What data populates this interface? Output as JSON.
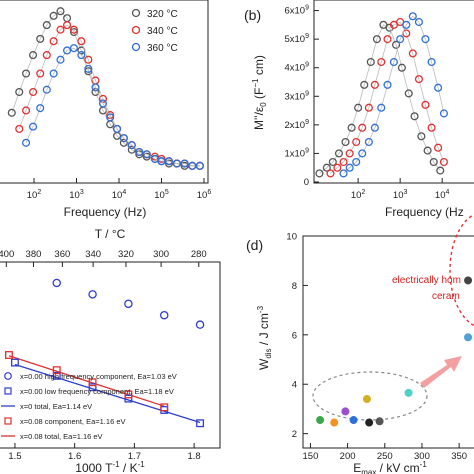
{
  "chart_data": [
    {
      "id": "a",
      "type": "scatter",
      "xlabel": "Frequency (Hz)",
      "xscale": "log",
      "xticks": [
        "10^2",
        "10^3",
        "10^4",
        "10^5",
        "10^6"
      ],
      "legend_position": "top-right",
      "series": [
        {
          "name": "320 °C",
          "color": "#555555",
          "x": [
            30,
            45,
            65,
            95,
            140,
            200,
            290,
            420,
            600,
            870,
            1300,
            1900,
            2800,
            4200,
            6200,
            9000,
            13000,
            20000,
            30000,
            45000,
            70000,
            100000,
            150000,
            230000,
            350000,
            530000,
            800000
          ],
          "y": [
            0.55,
            0.64,
            0.72,
            0.8,
            0.87,
            0.93,
            0.97,
            0.99,
            0.96,
            0.9,
            0.82,
            0.73,
            0.64,
            0.56,
            0.5,
            0.45,
            0.42,
            0.39,
            0.37,
            0.36,
            0.35,
            0.34,
            0.33,
            0.33,
            0.32,
            0.32,
            0.32
          ]
        },
        {
          "name": "340 °C",
          "color": "#e03030",
          "x": [
            45,
            65,
            95,
            140,
            200,
            290,
            420,
            600,
            870,
            1300,
            1900,
            2800,
            4200,
            6200,
            9000,
            13000,
            20000,
            30000,
            45000,
            70000,
            100000,
            150000,
            230000,
            350000,
            530000,
            800000
          ],
          "y": [
            0.48,
            0.56,
            0.64,
            0.72,
            0.8,
            0.86,
            0.91,
            0.93,
            0.91,
            0.86,
            0.78,
            0.69,
            0.61,
            0.54,
            0.48,
            0.44,
            0.41,
            0.38,
            0.37,
            0.36,
            0.35,
            0.34,
            0.33,
            0.33,
            0.32,
            0.32
          ]
        },
        {
          "name": "360 °C",
          "color": "#2f6fd6",
          "x": [
            65,
            95,
            140,
            200,
            290,
            420,
            600,
            870,
            1300,
            1900,
            2800,
            4200,
            6200,
            9000,
            13000,
            20000,
            30000,
            45000,
            70000,
            100000,
            150000,
            230000,
            350000,
            530000,
            800000
          ],
          "y": [
            0.42,
            0.49,
            0.57,
            0.65,
            0.72,
            0.78,
            0.82,
            0.83,
            0.8,
            0.74,
            0.66,
            0.59,
            0.53,
            0.48,
            0.44,
            0.41,
            0.38,
            0.37,
            0.35,
            0.34,
            0.34,
            0.33,
            0.33,
            0.32,
            0.32
          ]
        }
      ]
    },
    {
      "id": "b",
      "type": "scatter",
      "panel_label": "(b)",
      "xlabel": "Frequency (Hz",
      "ylabel": "M''/ε0 (F⁻¹ cm)",
      "xscale": "log",
      "xticks": [
        "10^2",
        "10^3",
        "10^4"
      ],
      "yticks": [
        "0",
        "1x10^9",
        "2x10^9",
        "3x10^9",
        "4x10^9",
        "5x10^9",
        "6x10^9"
      ],
      "ylim": [
        0,
        6.3
      ],
      "series": [
        {
          "name": "320 °C",
          "color": "#555555",
          "x": [
            12,
            18,
            25,
            35,
            50,
            70,
            100,
            140,
            200,
            280,
            400,
            560,
            800,
            1100,
            1600,
            2200,
            3200,
            4500,
            6300,
            9000
          ],
          "y": [
            0.3,
            0.5,
            0.7,
            1.0,
            1.4,
            1.9,
            2.6,
            3.4,
            4.2,
            5.0,
            5.5,
            5.4,
            4.8,
            4.0,
            3.1,
            2.3,
            1.6,
            1.1,
            0.7,
            0.4
          ]
        },
        {
          "name": "340 °C",
          "color": "#e03030",
          "x": [
            22,
            32,
            45,
            63,
            90,
            125,
            180,
            250,
            355,
            500,
            710,
            1000,
            1400,
            2000,
            2800,
            4000,
            5600,
            8000,
            11000
          ],
          "y": [
            0.3,
            0.5,
            0.7,
            1.0,
            1.4,
            1.9,
            2.6,
            3.4,
            4.2,
            5.0,
            5.5,
            5.6,
            5.2,
            4.5,
            3.6,
            2.7,
            1.9,
            1.2,
            0.7
          ]
        },
        {
          "name": "360 °C",
          "color": "#2f6fd6",
          "x": [
            45,
            63,
            90,
            125,
            180,
            250,
            355,
            500,
            710,
            1000,
            1400,
            2000,
            2800,
            4000,
            5600,
            8000,
            11000
          ],
          "y": [
            0.3,
            0.5,
            0.7,
            1.0,
            1.4,
            1.9,
            2.6,
            3.4,
            4.2,
            5.0,
            5.5,
            5.8,
            5.6,
            5.0,
            4.2,
            3.3,
            2.4
          ]
        }
      ]
    },
    {
      "id": "c",
      "type": "scatter",
      "xlabel": "1000 T⁻¹ / K⁻¹",
      "top_xlabel": "T / °C",
      "xticks": [
        "1.5",
        "1.6",
        "1.7",
        "1.8"
      ],
      "top_xticks": [
        "400",
        "380",
        "360",
        "340",
        "320",
        "300",
        "280"
      ],
      "series": [
        {
          "name": "x=0.00 high frequency component, Ea=1.03 eV",
          "marker": "circle",
          "color": "#2f3fcf",
          "x": [
            1.57,
            1.63,
            1.69,
            1.75,
            1.81
          ],
          "y": [
            9.3,
            9.0,
            8.75,
            8.45,
            8.2
          ]
        },
        {
          "name": "x=0.00 low frequency component, Ea=1.18 eV",
          "marker": "square",
          "color": "#2f3fcf",
          "x": [
            1.5,
            1.57,
            1.63,
            1.69,
            1.75,
            1.81
          ],
          "y": [
            7.2,
            6.85,
            6.55,
            6.25,
            5.95,
            5.6
          ]
        },
        {
          "name": "x=0 total, Ea=1.14 eV",
          "marker": "line",
          "color": "#2f3fcf",
          "x": [
            1.5,
            1.81
          ],
          "y": [
            7.15,
            5.62
          ]
        },
        {
          "name": "x=0.08 component, Ea=1.16 eV",
          "marker": "square",
          "color": "#e03030",
          "x": [
            1.49,
            1.57,
            1.63,
            1.69,
            1.75
          ],
          "y": [
            7.4,
            7.0,
            6.68,
            6.36,
            6.02
          ]
        },
        {
          "name": "x=0.08 total, Ea=1.16 eV",
          "marker": "line",
          "color": "#e03030",
          "x": [
            1.49,
            1.75
          ],
          "y": [
            7.38,
            6.05
          ]
        }
      ]
    },
    {
      "id": "d",
      "type": "scatter",
      "panel_label": "(d)",
      "xlabel": "E_max / kV cm⁻¹",
      "ylabel": "W_dis / J cm⁻³",
      "xticks": [
        "150",
        "200",
        "250",
        "300",
        "350"
      ],
      "yticks": [
        "2",
        "4",
        "6",
        "8",
        "10"
      ],
      "ylim": [
        1.5,
        10
      ],
      "annotation": "electrically ho… ceram…",
      "points": [
        {
          "x": 163,
          "y": 2.55,
          "color": "#3aa84a"
        },
        {
          "x": 182,
          "y": 2.45,
          "color": "#f29220"
        },
        {
          "x": 197,
          "y": 2.9,
          "color": "#9a4fcf"
        },
        {
          "x": 208,
          "y": 2.55,
          "color": "#2f6fd6"
        },
        {
          "x": 226,
          "y": 3.4,
          "color": "#d4b020"
        },
        {
          "x": 229,
          "y": 2.45,
          "color": "#222222"
        },
        {
          "x": 243,
          "y": 2.5,
          "color": "#555555"
        },
        {
          "x": 282,
          "y": 3.65,
          "color": "#4fd0c8"
        },
        {
          "x": 362,
          "y": 8.2,
          "color": "#444444"
        },
        {
          "x": 362,
          "y": 5.9,
          "color": "#4fa0d8"
        }
      ]
    }
  ],
  "labels": {
    "a_x": "Frequency (Hz)",
    "a_legend": [
      "320 °C",
      "340 °C",
      "360 °C"
    ],
    "b_panel": "(b)",
    "b_x": "Frequency (Hz",
    "b_y": "M''/ε",
    "b_y_sub": "0",
    "b_y_unit": " (F",
    "b_y_sup": "−1",
    "b_y_end": " cm)",
    "c_top": "T / °C",
    "c_x": "1000 T",
    "c_x_sup1": "-1",
    "c_x_mid": " / K",
    "c_x_sup2": "-1",
    "c_legend": [
      "x=0.00 high frequency component, Ea=1.03 eV",
      "x=0.00 low frequency component, Ea=1.18 eV",
      "x=0 total, Ea=1.14 eV",
      "x=0.08 component, Ea=1.16 eV",
      "x=0.08 total, Ea=1.16 eV"
    ],
    "d_panel": "(d)",
    "d_x": "E",
    "d_x_sub": "max",
    "d_x_end": " / kV cm",
    "d_x_sup": "-1",
    "d_y": "W",
    "d_y_sub": "dis",
    "d_y_end": " / J cm",
    "d_y_sup": "-3",
    "d_annot1": "electrically hom",
    "d_annot2": "ceram"
  }
}
